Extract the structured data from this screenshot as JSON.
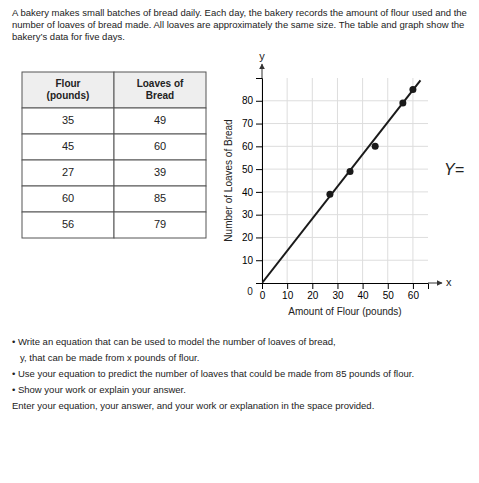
{
  "chart_data": {
    "type": "scatter",
    "title": "A bakery makes small batches of bread daily. Each day, the bakery records the amount of flour used and the number of loaves of bread made. All loaves are approximately the same size. The table and graph show the bakery’s data for five days.",
    "table": {
      "headers": [
        "Flour\n(pounds)",
        "Loaves of\nBread"
      ]
    },
    "series": [
      {
        "type": "scatter",
        "marker": "circle",
        "color": "#1a1a1a",
        "x": [
          35,
          45,
          27,
          60,
          56
        ],
        "values": [
          49,
          60,
          39,
          85,
          79
        ]
      },
      {
        "type": "line",
        "line_style": "solid",
        "color": "#1a1a1a",
        "x": [
          0,
          63
        ],
        "values": [
          0,
          89
        ]
      }
    ],
    "xlabel": "Amount of Flour (pounds)",
    "ylabel": "Number of Loaves of Bread",
    "x_symbol": "x",
    "y_symbol": "y",
    "origin_label": "0",
    "answer_label": "Y=",
    "xlim": [
      0,
      66
    ],
    "ylim": [
      0,
      90
    ],
    "xticks": [
      0,
      10,
      20,
      30,
      40,
      50,
      60
    ],
    "yticks": [
      10,
      20,
      30,
      40,
      50,
      60,
      70,
      80
    ],
    "grid": true,
    "annotations": [
      "• Write an equation that can be used to model the number of loaves of bread,",
      "   y, that can be made from x pounds of flour.",
      "• Use your equation to predict the number of loaves that could be made from 85 pounds of flour.",
      "• Show your work or explain your answer.",
      "Enter your equation, your answer, and your work or explanation in the space provided."
    ]
  }
}
